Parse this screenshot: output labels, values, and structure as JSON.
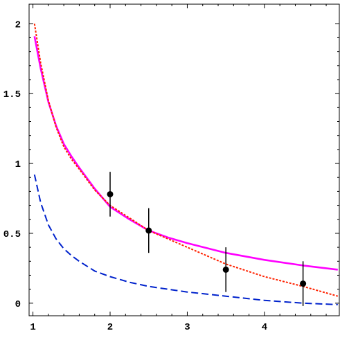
{
  "chart_data": {
    "type": "line",
    "title": "",
    "xlabel": "",
    "ylabel": "",
    "xlim": [
      0.95,
      4.97
    ],
    "ylim": [
      -0.09,
      2.14
    ],
    "x_ticks": [
      {
        "value": 1,
        "label": "1"
      },
      {
        "value": 2,
        "label": "2"
      },
      {
        "value": 3,
        "label": "3"
      },
      {
        "value": 4,
        "label": "4"
      }
    ],
    "y_ticks": [
      {
        "value": 0,
        "label": "0"
      },
      {
        "value": 0.5,
        "label": "0.5"
      },
      {
        "value": 1,
        "label": "1"
      },
      {
        "value": 1.5,
        "label": "1.5"
      },
      {
        "value": 2,
        "label": "2"
      }
    ],
    "minor_x_ticks": [
      1.2,
      1.4,
      1.6,
      1.8,
      2.2,
      2.4,
      2.6,
      2.8,
      3.2,
      3.4,
      3.6,
      3.8,
      4.2,
      4.4,
      4.6,
      4.8
    ],
    "minor_y_ticks": [
      0.1,
      0.2,
      0.3,
      0.4,
      0.6,
      0.7,
      0.8,
      0.9,
      1.1,
      1.2,
      1.3,
      1.4,
      1.6,
      1.7,
      1.8,
      1.9
    ],
    "series": [
      {
        "style": "solid",
        "color": "#ff00ff",
        "x": [
          1.02,
          1.1,
          1.2,
          1.3,
          1.4,
          1.5,
          1.6,
          1.8,
          2.0,
          2.25,
          2.5,
          2.75,
          3.0,
          3.5,
          4.0,
          4.5,
          4.95
        ],
        "y": [
          1.91,
          1.68,
          1.44,
          1.27,
          1.14,
          1.05,
          0.97,
          0.82,
          0.69,
          0.6,
          0.52,
          0.47,
          0.43,
          0.36,
          0.31,
          0.27,
          0.24
        ]
      },
      {
        "style": "dotted",
        "color": "#ff2200",
        "x": [
          1.02,
          1.1,
          1.2,
          1.3,
          1.4,
          1.5,
          1.6,
          1.8,
          2.0,
          2.25,
          2.5,
          2.75,
          3.0,
          3.5,
          4.0,
          4.5,
          4.95
        ],
        "y": [
          2.0,
          1.72,
          1.45,
          1.26,
          1.12,
          1.03,
          0.96,
          0.81,
          0.7,
          0.61,
          0.52,
          0.46,
          0.4,
          0.28,
          0.19,
          0.12,
          0.05
        ]
      },
      {
        "style": "dashed",
        "color": "#0022cc",
        "x": [
          1.02,
          1.1,
          1.2,
          1.3,
          1.4,
          1.5,
          1.6,
          1.8,
          2.0,
          2.25,
          2.5,
          2.75,
          3.0,
          3.5,
          4.0,
          4.5,
          4.95
        ],
        "y": [
          0.92,
          0.72,
          0.56,
          0.46,
          0.39,
          0.34,
          0.3,
          0.23,
          0.19,
          0.15,
          0.12,
          0.1,
          0.08,
          0.05,
          0.02,
          0.0,
          -0.01
        ]
      }
    ],
    "points": [
      {
        "x": 2.0,
        "y": 0.78,
        "err_low": 0.62,
        "err_high": 0.94
      },
      {
        "x": 2.5,
        "y": 0.52,
        "err_low": 0.36,
        "err_high": 0.68
      },
      {
        "x": 3.5,
        "y": 0.24,
        "err_low": 0.08,
        "err_high": 0.4
      },
      {
        "x": 4.5,
        "y": 0.14,
        "err_low": -0.02,
        "err_high": 0.3
      }
    ],
    "colors": {
      "frame": "#000000",
      "points": "#000000"
    }
  }
}
